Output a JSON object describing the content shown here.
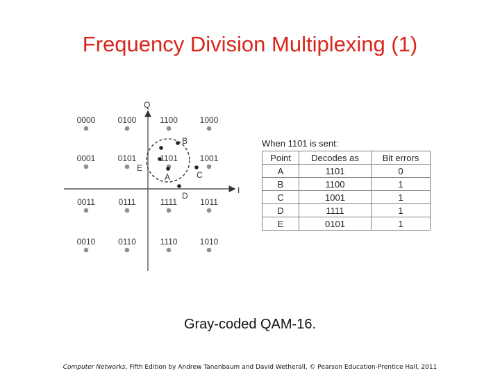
{
  "title": "Frequency Division Multiplexing (1)",
  "axes": {
    "q_label": "Q",
    "i_label": "I"
  },
  "constellation": [
    {
      "code": "0000",
      "row": 0,
      "col": 0
    },
    {
      "code": "0100",
      "row": 0,
      "col": 1
    },
    {
      "code": "1100",
      "row": 0,
      "col": 2
    },
    {
      "code": "1000",
      "row": 0,
      "col": 3
    },
    {
      "code": "0001",
      "row": 1,
      "col": 0
    },
    {
      "code": "0101",
      "row": 1,
      "col": 1
    },
    {
      "code": "1101",
      "row": 1,
      "col": 2
    },
    {
      "code": "1001",
      "row": 1,
      "col": 3
    },
    {
      "code": "0011",
      "row": 2,
      "col": 0
    },
    {
      "code": "0111",
      "row": 2,
      "col": 1
    },
    {
      "code": "1111",
      "row": 2,
      "col": 2
    },
    {
      "code": "1011",
      "row": 2,
      "col": 3
    },
    {
      "code": "0010",
      "row": 3,
      "col": 0
    },
    {
      "code": "0110",
      "row": 3,
      "col": 1
    },
    {
      "code": "1110",
      "row": 3,
      "col": 2
    },
    {
      "code": "1010",
      "row": 3,
      "col": 3
    }
  ],
  "received_points": [
    "A",
    "B",
    "C",
    "D",
    "E"
  ],
  "table": {
    "caption": "When 1101 is sent:",
    "headers": [
      "Point",
      "Decodes as",
      "Bit errors"
    ],
    "rows": [
      {
        "point": "A",
        "decodes_as": "1101",
        "bit_errors": "0"
      },
      {
        "point": "B",
        "decodes_as": "1100",
        "bit_errors": "1"
      },
      {
        "point": "C",
        "decodes_as": "1001",
        "bit_errors": "1"
      },
      {
        "point": "D",
        "decodes_as": "1111",
        "bit_errors": "1"
      },
      {
        "point": "E",
        "decodes_as": "0101",
        "bit_errors": "1"
      }
    ]
  },
  "caption": "Gray-coded QAM-16.",
  "footer": {
    "book": "Computer Networks",
    "rest": ", Fifth Edition by Andrew Tanenbaum and David Wetherall, © Pearson Education-Prentice Hall, 2011"
  }
}
